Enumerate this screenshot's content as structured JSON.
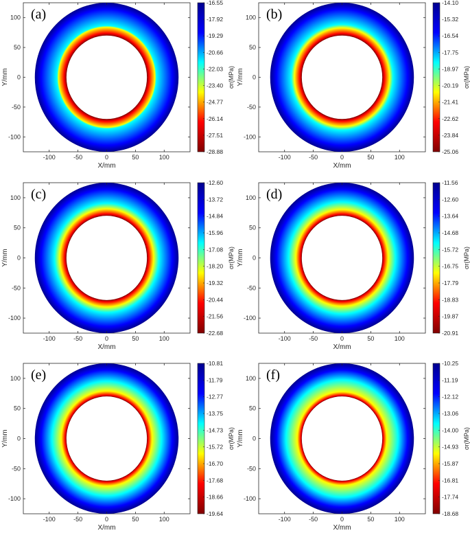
{
  "chart_data": [
    {
      "type": "heatmap",
      "label": "(a)",
      "xlabel": "X/mm",
      "ylabel": "Y/mm",
      "xlim": [
        -145,
        145
      ],
      "ylim": [
        -125,
        125
      ],
      "xticks": [
        "-100",
        "-50",
        "0",
        "50",
        "100"
      ],
      "yticks": [
        "100",
        "50",
        "0",
        "-50",
        "-100"
      ],
      "inner_radius": 70,
      "outer_radius": 125,
      "colorbar": {
        "label": "σr(MPa)",
        "ticks": [
          "-16.55",
          "-17.92",
          "-19.29",
          "-20.66",
          "-22.03",
          "-23.40",
          "-24.77",
          "-26.14",
          "-27.51",
          "-28.88"
        ]
      }
    },
    {
      "type": "heatmap",
      "label": "(b)",
      "xlabel": "X/mm",
      "ylabel": "Y/mm",
      "xlim": [
        -145,
        145
      ],
      "ylim": [
        -125,
        125
      ],
      "xticks": [
        "-100",
        "-50",
        "0",
        "50",
        "100"
      ],
      "yticks": [
        "100",
        "50",
        "0",
        "-50",
        "-100"
      ],
      "inner_radius": 70,
      "outer_radius": 125,
      "colorbar": {
        "label": "σr(MPa)",
        "ticks": [
          "-14.10",
          "-15.32",
          "-16.54",
          "-17.75",
          "-18.97",
          "-20.19",
          "-21.41",
          "-22.62",
          "-23.84",
          "-25.06"
        ]
      }
    },
    {
      "type": "heatmap",
      "label": "(c)",
      "xlabel": "X/mm",
      "ylabel": "Y/mm",
      "xlim": [
        -145,
        145
      ],
      "ylim": [
        -125,
        125
      ],
      "xticks": [
        "-100",
        "-50",
        "0",
        "50",
        "100"
      ],
      "yticks": [
        "100",
        "50",
        "0",
        "-50",
        "-100"
      ],
      "inner_radius": 70,
      "outer_radius": 125,
      "colorbar": {
        "label": "σr(MPa)",
        "ticks": [
          "-12.60",
          "-13.72",
          "-14.84",
          "-15.96",
          "-17.08",
          "-18.20",
          "-19.32",
          "-20.44",
          "-21.56",
          "-22.68"
        ]
      }
    },
    {
      "type": "heatmap",
      "label": "(d)",
      "xlabel": "X/mm",
      "ylabel": "Y/mm",
      "xlim": [
        -145,
        145
      ],
      "ylim": [
        -125,
        125
      ],
      "xticks": [
        "-100",
        "-50",
        "0",
        "50",
        "100"
      ],
      "yticks": [
        "100",
        "50",
        "0",
        "-50",
        "-100"
      ],
      "inner_radius": 70,
      "outer_radius": 125,
      "colorbar": {
        "label": "σr(MPa)",
        "ticks": [
          "-11.56",
          "-12.60",
          "-13.64",
          "-14.68",
          "-15.72",
          "-16.75",
          "-17.79",
          "-18.83",
          "-19.87",
          "-20.91"
        ]
      }
    },
    {
      "type": "heatmap",
      "label": "(e)",
      "xlabel": "X/mm",
      "ylabel": "Y/mm",
      "xlim": [
        -145,
        145
      ],
      "ylim": [
        -125,
        125
      ],
      "xticks": [
        "-100",
        "-50",
        "0",
        "50",
        "100"
      ],
      "yticks": [
        "100",
        "50",
        "0",
        "-50",
        "-100"
      ],
      "inner_radius": 70,
      "outer_radius": 125,
      "colorbar": {
        "label": "σr(MPa)",
        "ticks": [
          "-10.81",
          "-11.79",
          "-12.77",
          "-13.75",
          "-14.73",
          "-15.72",
          "-16.70",
          "-17.68",
          "-18.66",
          "-19.64"
        ]
      }
    },
    {
      "type": "heatmap",
      "label": "(f)",
      "xlabel": "X/mm",
      "ylabel": "Y/mm",
      "xlim": [
        -145,
        145
      ],
      "ylim": [
        -125,
        125
      ],
      "xticks": [
        "-100",
        "-50",
        "0",
        "50",
        "100"
      ],
      "yticks": [
        "100",
        "50",
        "0",
        "-50",
        "-100"
      ],
      "inner_radius": 70,
      "outer_radius": 125,
      "colorbar": {
        "label": "σr(MPa)",
        "ticks": [
          "-10.25",
          "-11.19",
          "-12.12",
          "-13.06",
          "-14.00",
          "-14.93",
          "-15.87",
          "-16.81",
          "-17.74",
          "-18.68"
        ]
      }
    }
  ],
  "colormap": [
    "#800000",
    "#ff0000",
    "#ffff00",
    "#00ffff",
    "#0000ff",
    "#00008f"
  ]
}
